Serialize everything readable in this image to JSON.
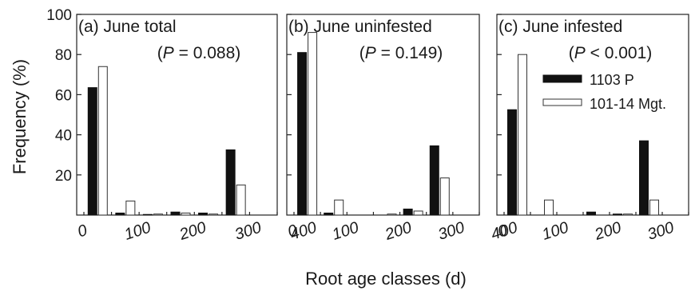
{
  "chart_data": {
    "type": "bar",
    "ylabel": "Frequency (%)",
    "xlabel": "Root age classes (d)",
    "ylim": [
      0,
      100
    ],
    "yticks": [
      20,
      40,
      60,
      80,
      100
    ],
    "xticks": [
      "0",
      "100",
      "200",
      "300",
      "400"
    ],
    "legend": {
      "placement": "panel (c), right",
      "entries": [
        {
          "name": "1103 P",
          "color": "#111111"
        },
        {
          "name": "101-14 Mgt.",
          "color": "#ffffff"
        }
      ]
    },
    "bin_starts": [
      0,
      50,
      100,
      150,
      200,
      250,
      300
    ],
    "bin_width_days": 50,
    "panels": [
      {
        "id": "a",
        "label": "(a)",
        "title": "June total",
        "stat": "(P = 0.088)",
        "series": [
          {
            "name": "1103 P",
            "values": [
              63.5,
              1.0,
              0.3,
              1.5,
              1.0,
              32.5,
              0
            ]
          },
          {
            "name": "101-14 Mgt.",
            "values": [
              74,
              7,
              0.5,
              1.0,
              0.5,
              15,
              0
            ]
          }
        ]
      },
      {
        "id": "b",
        "label": "(b)",
        "title": "June uninfested",
        "stat": "(P = 0.149)",
        "series": [
          {
            "name": "1103 P",
            "values": [
              81,
              1,
              0,
              0,
              3,
              34.5,
              0
            ]
          },
          {
            "name": "101-14 Mgt.",
            "values": [
              91,
              7.5,
              0,
              0.5,
              2,
              18.5,
              0
            ]
          }
        ]
      },
      {
        "id": "c",
        "label": "(c)",
        "title": "June infested",
        "stat": "(P < 0.001)",
        "series": [
          {
            "name": "1103 P",
            "values": [
              52.5,
              0,
              0,
              1.5,
              0.5,
              37,
              0
            ]
          },
          {
            "name": "101-14 Mgt.",
            "values": [
              80,
              7.5,
              0,
              0,
              0.5,
              7.5,
              0
            ]
          }
        ]
      }
    ]
  }
}
